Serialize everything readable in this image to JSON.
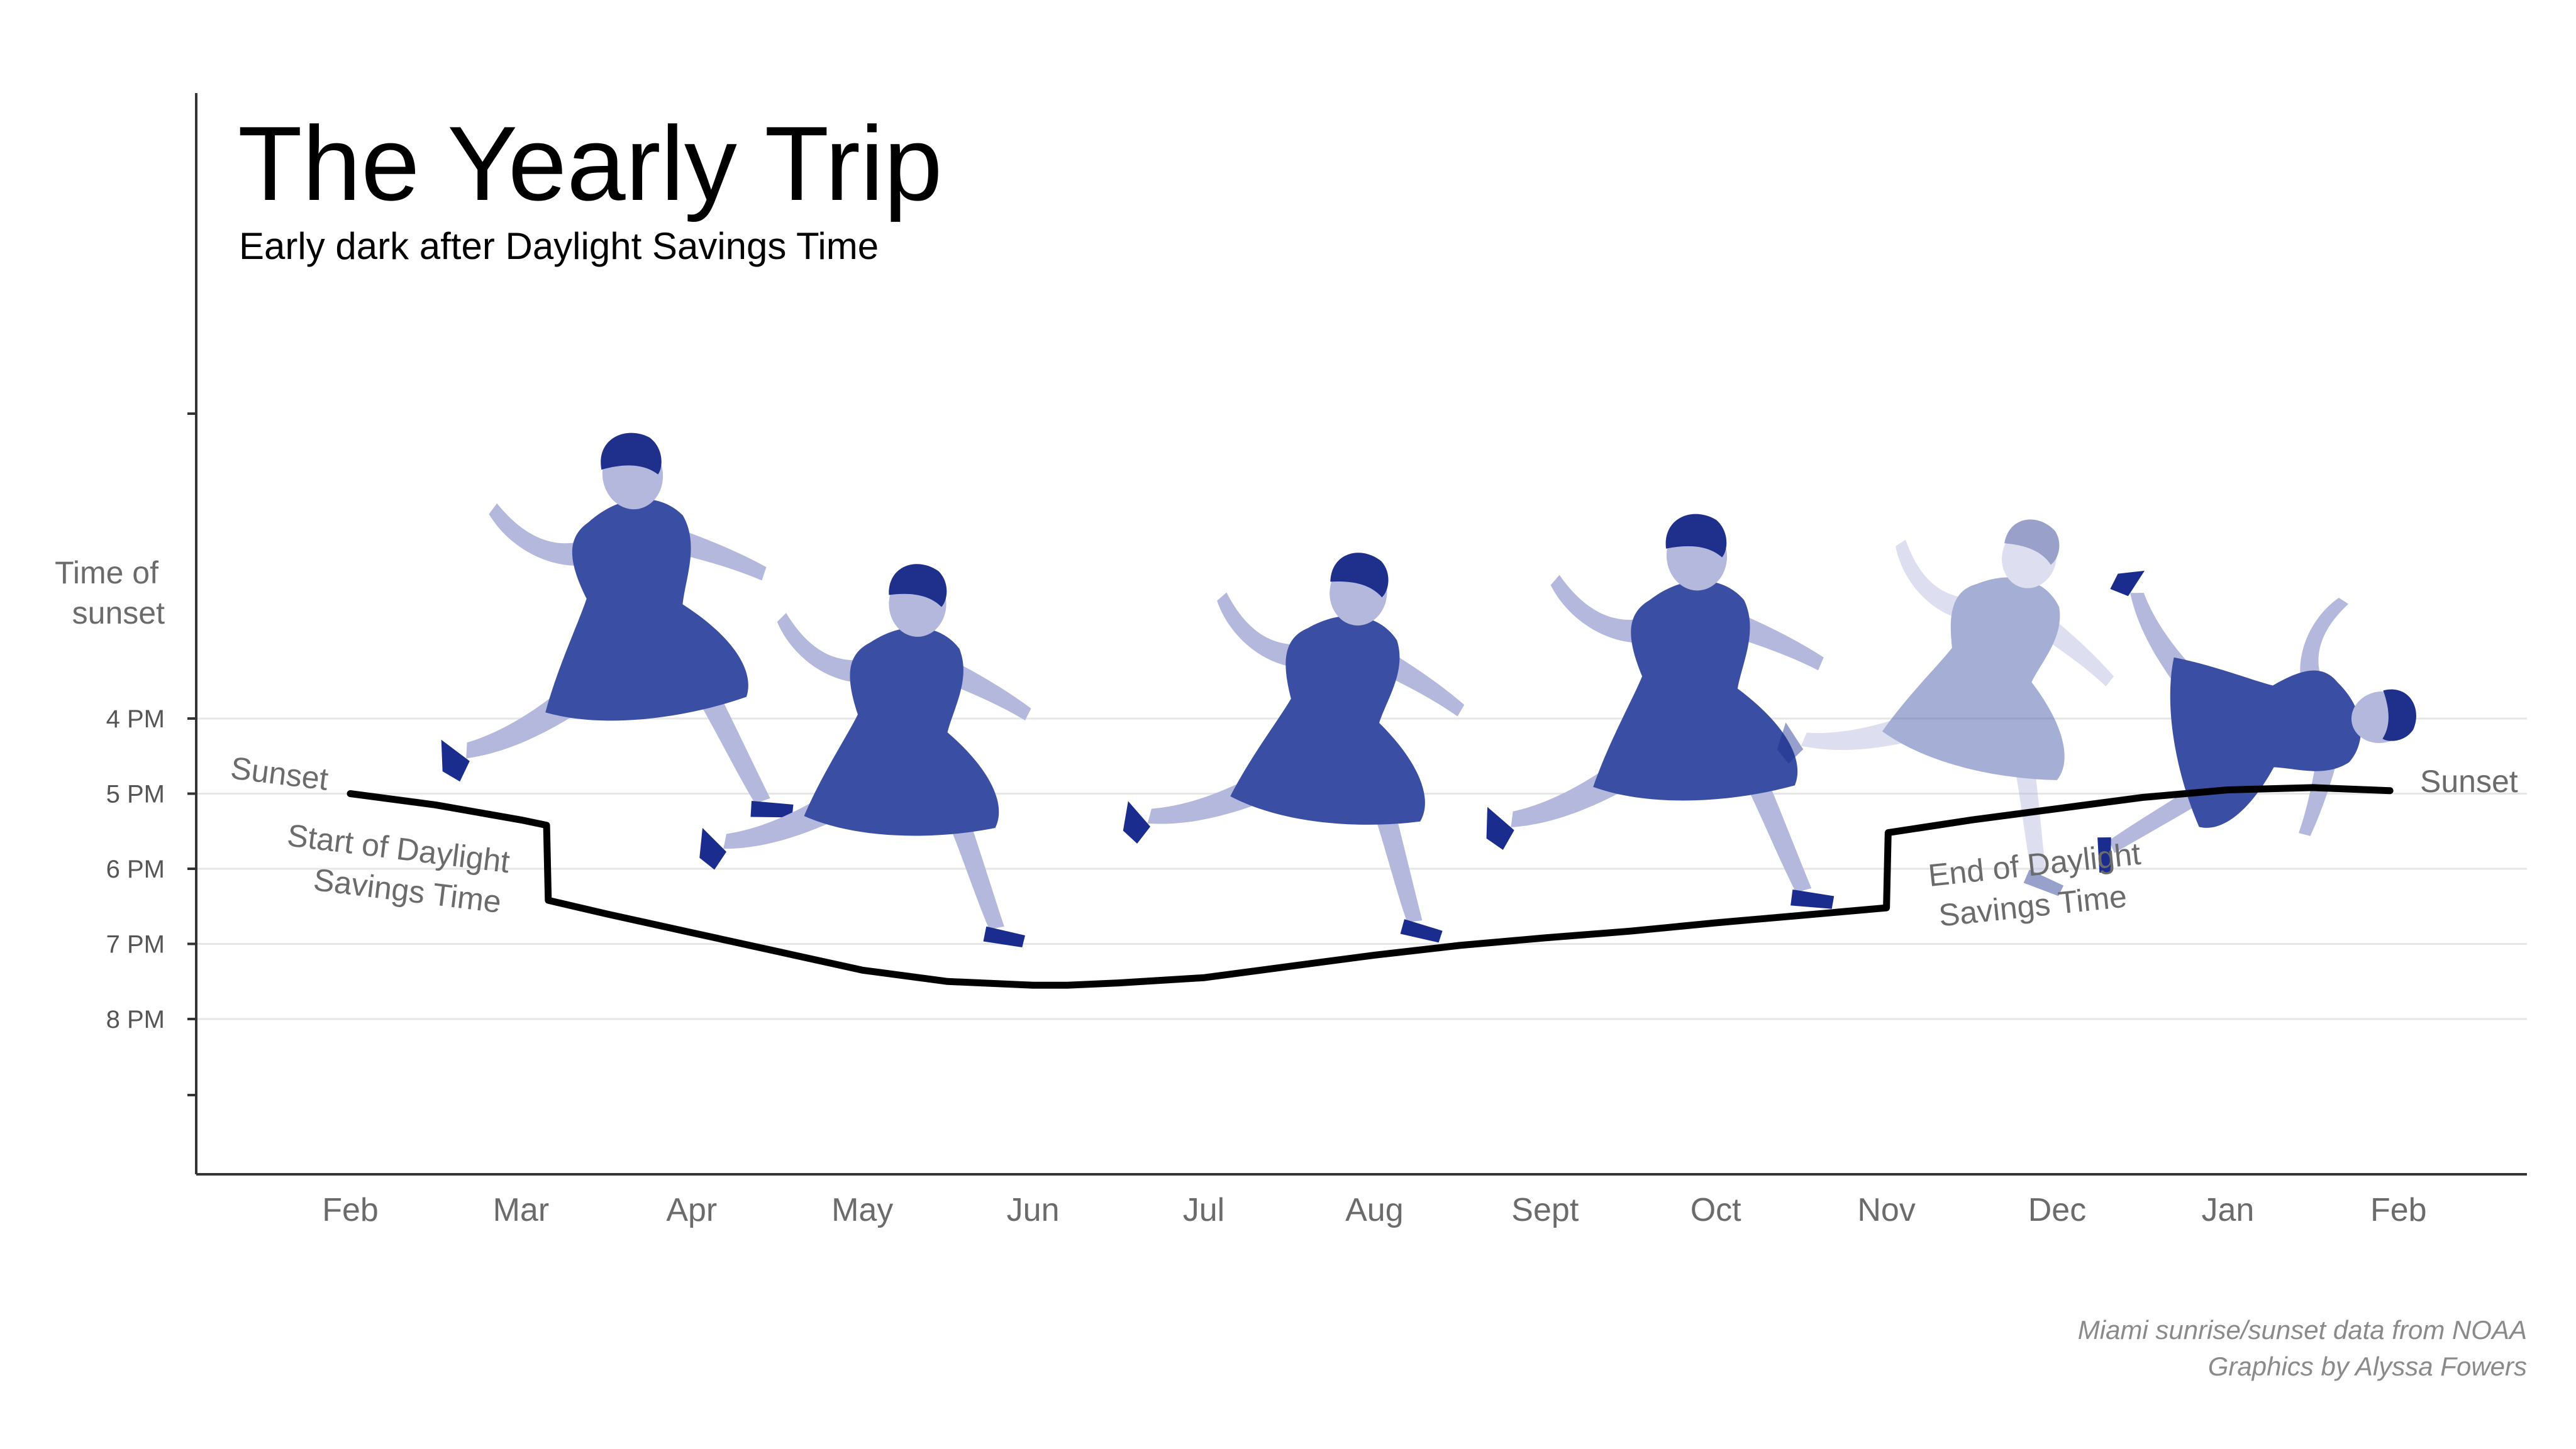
{
  "chart_data": {
    "type": "line",
    "title": "The Yearly Trip",
    "subtitle": "Early dark after Daylight Savings Time",
    "ylabel": [
      "Time of",
      "sunset"
    ],
    "y_ticks": [
      "4 PM",
      "5 PM",
      "6 PM",
      "7 PM",
      "8 PM"
    ],
    "x_ticks": [
      "Feb",
      "Mar",
      "Apr",
      "May",
      "Jun",
      "Jul",
      "Aug",
      "Sept",
      "Oct",
      "Nov",
      "Dec",
      "Jan",
      "Feb"
    ],
    "y_inverted": true,
    "ylim": [
      2.0,
      10.0
    ],
    "grid": "horizontal",
    "series": [
      {
        "name": "Sunset",
        "x": [
          0,
          0.5,
          1.0,
          1.15,
          1.16,
          1.5,
          2.0,
          2.5,
          3.0,
          3.5,
          4.0,
          4.2,
          4.5,
          5.0,
          5.5,
          6.0,
          6.5,
          7.0,
          7.5,
          8.0,
          8.5,
          9.0,
          9.01,
          9.5,
          10.0,
          10.5,
          11.0,
          11.5,
          11.95
        ],
        "y": [
          5.0,
          5.15,
          5.35,
          5.42,
          6.42,
          6.6,
          6.85,
          7.1,
          7.35,
          7.5,
          7.55,
          7.55,
          7.52,
          7.45,
          7.3,
          7.15,
          7.02,
          6.92,
          6.83,
          6.72,
          6.62,
          6.52,
          5.52,
          5.35,
          5.2,
          5.05,
          4.95,
          4.92,
          4.96
        ],
        "end_labels": [
          "Sunset",
          "Sunset"
        ]
      }
    ],
    "annotations": [
      {
        "lines": [
          "Start of Daylight",
          "Savings Time"
        ]
      },
      {
        "lines": [
          "End of Daylight",
          "Savings Time"
        ]
      }
    ],
    "credits": [
      "Miami sunrise/sunset data from NOAA",
      "Graphics by Alyssa Fowers"
    ],
    "colors": {
      "line": "#000000",
      "figure_dark": "#3a4ea3",
      "figure_light": "#b4b8dc",
      "shoe": "#1a2d8f",
      "hair": "#1e2f8c"
    }
  }
}
